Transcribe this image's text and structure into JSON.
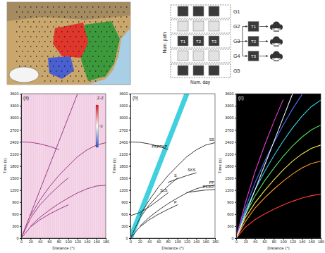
{
  "diagram": {
    "row_labels": [
      "G1",
      "G2",
      "G3",
      "G4",
      "G5"
    ],
    "cells": [
      "T1",
      "T2",
      "T3"
    ],
    "x_label": "Num. day",
    "y_label": "Num. path"
  },
  "chart_data": [
    {
      "type": "line",
      "title": "(a)",
      "annotation": "Z-Z",
      "x_label": "Distance (°)",
      "y_label": "Time (s)",
      "xlim": [
        0,
        180
      ],
      "ylim": [
        0,
        3600
      ],
      "xticks": [
        0,
        20,
        40,
        60,
        80,
        100,
        120,
        140,
        160,
        180
      ],
      "yticks": [
        0,
        300,
        600,
        900,
        1200,
        1500,
        1800,
        2100,
        2400,
        2700,
        3000,
        3300,
        3600
      ],
      "x": [
        0,
        20,
        40,
        60,
        80,
        100,
        120,
        140,
        160,
        180
      ],
      "colorbar_ticks": [
        0
      ],
      "series": [
        {
          "color": "#8e2a7b",
          "values": [
            0,
            280,
            460,
            600,
            720,
            830,
            null,
            null,
            null,
            null
          ]
        },
        {
          "color": "#8e2a7b",
          "values": [
            null,
            300,
            520,
            700,
            860,
            1000,
            1130,
            1230,
            1300,
            1320
          ]
        },
        {
          "color": "#8e2a7b",
          "values": [
            0,
            500,
            830,
            1080,
            1300,
            1500,
            null,
            null,
            null,
            null
          ]
        },
        {
          "color": "#8e2a7b",
          "values": [
            null,
            560,
            950,
            1280,
            1560,
            1800,
            2030,
            2200,
            2320,
            2380
          ]
        },
        {
          "color": "#8e2a7b",
          "values": [
            2400,
            2390,
            2350,
            2290,
            2210,
            null,
            null,
            null,
            null,
            null
          ]
        },
        {
          "color": "#8e2a7b",
          "values": [
            0,
            600,
            1200,
            1800,
            2400,
            3000,
            3600,
            null,
            null,
            null
          ]
        }
      ]
    },
    {
      "type": "line",
      "title": "(b)",
      "x_label": "Distance (°)",
      "y_label": "Time (s)",
      "xlim": [
        0,
        180
      ],
      "ylim": [
        0,
        3600
      ],
      "xticks": [
        0,
        20,
        40,
        60,
        80,
        100,
        120,
        140,
        160,
        180
      ],
      "yticks": [
        0,
        300,
        600,
        900,
        1200,
        1500,
        1800,
        2100,
        2400,
        2700,
        3000,
        3300,
        3600
      ],
      "x": [
        0,
        20,
        40,
        60,
        80,
        100,
        120,
        140,
        160,
        180
      ],
      "series": [
        {
          "color": "#1ec8d8",
          "line_style": "thick",
          "values": [
            0,
            600,
            1200,
            1800,
            2400,
            3000,
            3600,
            null,
            null,
            null
          ]
        },
        {
          "name": "P",
          "color": "#222222",
          "values": [
            0,
            280,
            460,
            600,
            720,
            830,
            null,
            null,
            null,
            null
          ]
        },
        {
          "name": "PP",
          "color": "#222222",
          "values": [
            null,
            300,
            520,
            700,
            860,
            1000,
            1130,
            1230,
            1300,
            1320
          ]
        },
        {
          "name": "S",
          "color": "#222222",
          "values": [
            0,
            500,
            830,
            1080,
            1300,
            1500,
            null,
            null,
            null,
            null
          ]
        },
        {
          "name": "SS",
          "color": "#222222",
          "values": [
            null,
            560,
            950,
            1280,
            1560,
            1800,
            2030,
            2200,
            2320,
            2380
          ]
        },
        {
          "name": "ScS",
          "color": "#222222",
          "values": [
            560,
            640,
            780,
            950,
            1130,
            null,
            null,
            null,
            null,
            null
          ]
        },
        {
          "name": "SKS",
          "color": "#222222",
          "values": [
            null,
            null,
            null,
            null,
            1390,
            1480,
            1560,
            1630,
            null,
            null
          ]
        },
        {
          "name": "PKIKP",
          "color": "#222222",
          "values": [
            null,
            null,
            null,
            null,
            null,
            null,
            1140,
            1170,
            1200,
            1210
          ]
        },
        {
          "name": "PKPPKP",
          "color": "#222222",
          "values": [
            2400,
            2390,
            2350,
            2290,
            2210,
            null,
            null,
            null,
            null,
            null
          ]
        }
      ]
    },
    {
      "type": "line",
      "title": "(c)",
      "x_label": "Distance (°)",
      "y_label": "Time (s)",
      "xlim": [
        0,
        180
      ],
      "ylim": [
        0,
        3600
      ],
      "xticks": [
        0,
        20,
        40,
        60,
        80,
        100,
        120,
        140,
        160,
        180
      ],
      "yticks": [
        0,
        300,
        600,
        900,
        1200,
        1500,
        1800,
        2100,
        2400,
        2700,
        3000,
        3300,
        3600
      ],
      "x": [
        0,
        20,
        40,
        60,
        80,
        100,
        120,
        140,
        160,
        180
      ],
      "series": [
        {
          "color": "#ff3b3b",
          "values": [
            0,
            280,
            460,
            600,
            720,
            830,
            920,
            1000,
            1060,
            1100
          ]
        },
        {
          "color": "#ff9a2e",
          "values": [
            0,
            420,
            750,
            1000,
            1220,
            1420,
            1600,
            1750,
            1860,
            1920
          ]
        },
        {
          "color": "#f4e842",
          "values": [
            0,
            520,
            880,
            1180,
            1450,
            1700,
            1920,
            2100,
            2240,
            2320
          ]
        },
        {
          "color": "#4fe05a",
          "values": [
            0,
            600,
            1050,
            1420,
            1740,
            2040,
            2300,
            2520,
            2700,
            2820
          ]
        },
        {
          "color": "#36d6e6",
          "values": [
            0,
            680,
            1200,
            1650,
            2050,
            2420,
            2750,
            3040,
            3280,
            3440
          ]
        },
        {
          "color": "#4a6cff",
          "values": [
            0,
            760,
            1380,
            1900,
            2380,
            2820,
            3220,
            3580,
            null,
            null
          ]
        },
        {
          "color": "#e040d0",
          "values": [
            0,
            900,
            1650,
            2300,
            2900,
            3450,
            null,
            null,
            null,
            null
          ]
        },
        {
          "color": "#e8f8ff",
          "values": [
            0,
            600,
            1200,
            1800,
            2400,
            3000,
            3600,
            null,
            null,
            null
          ]
        }
      ]
    }
  ]
}
